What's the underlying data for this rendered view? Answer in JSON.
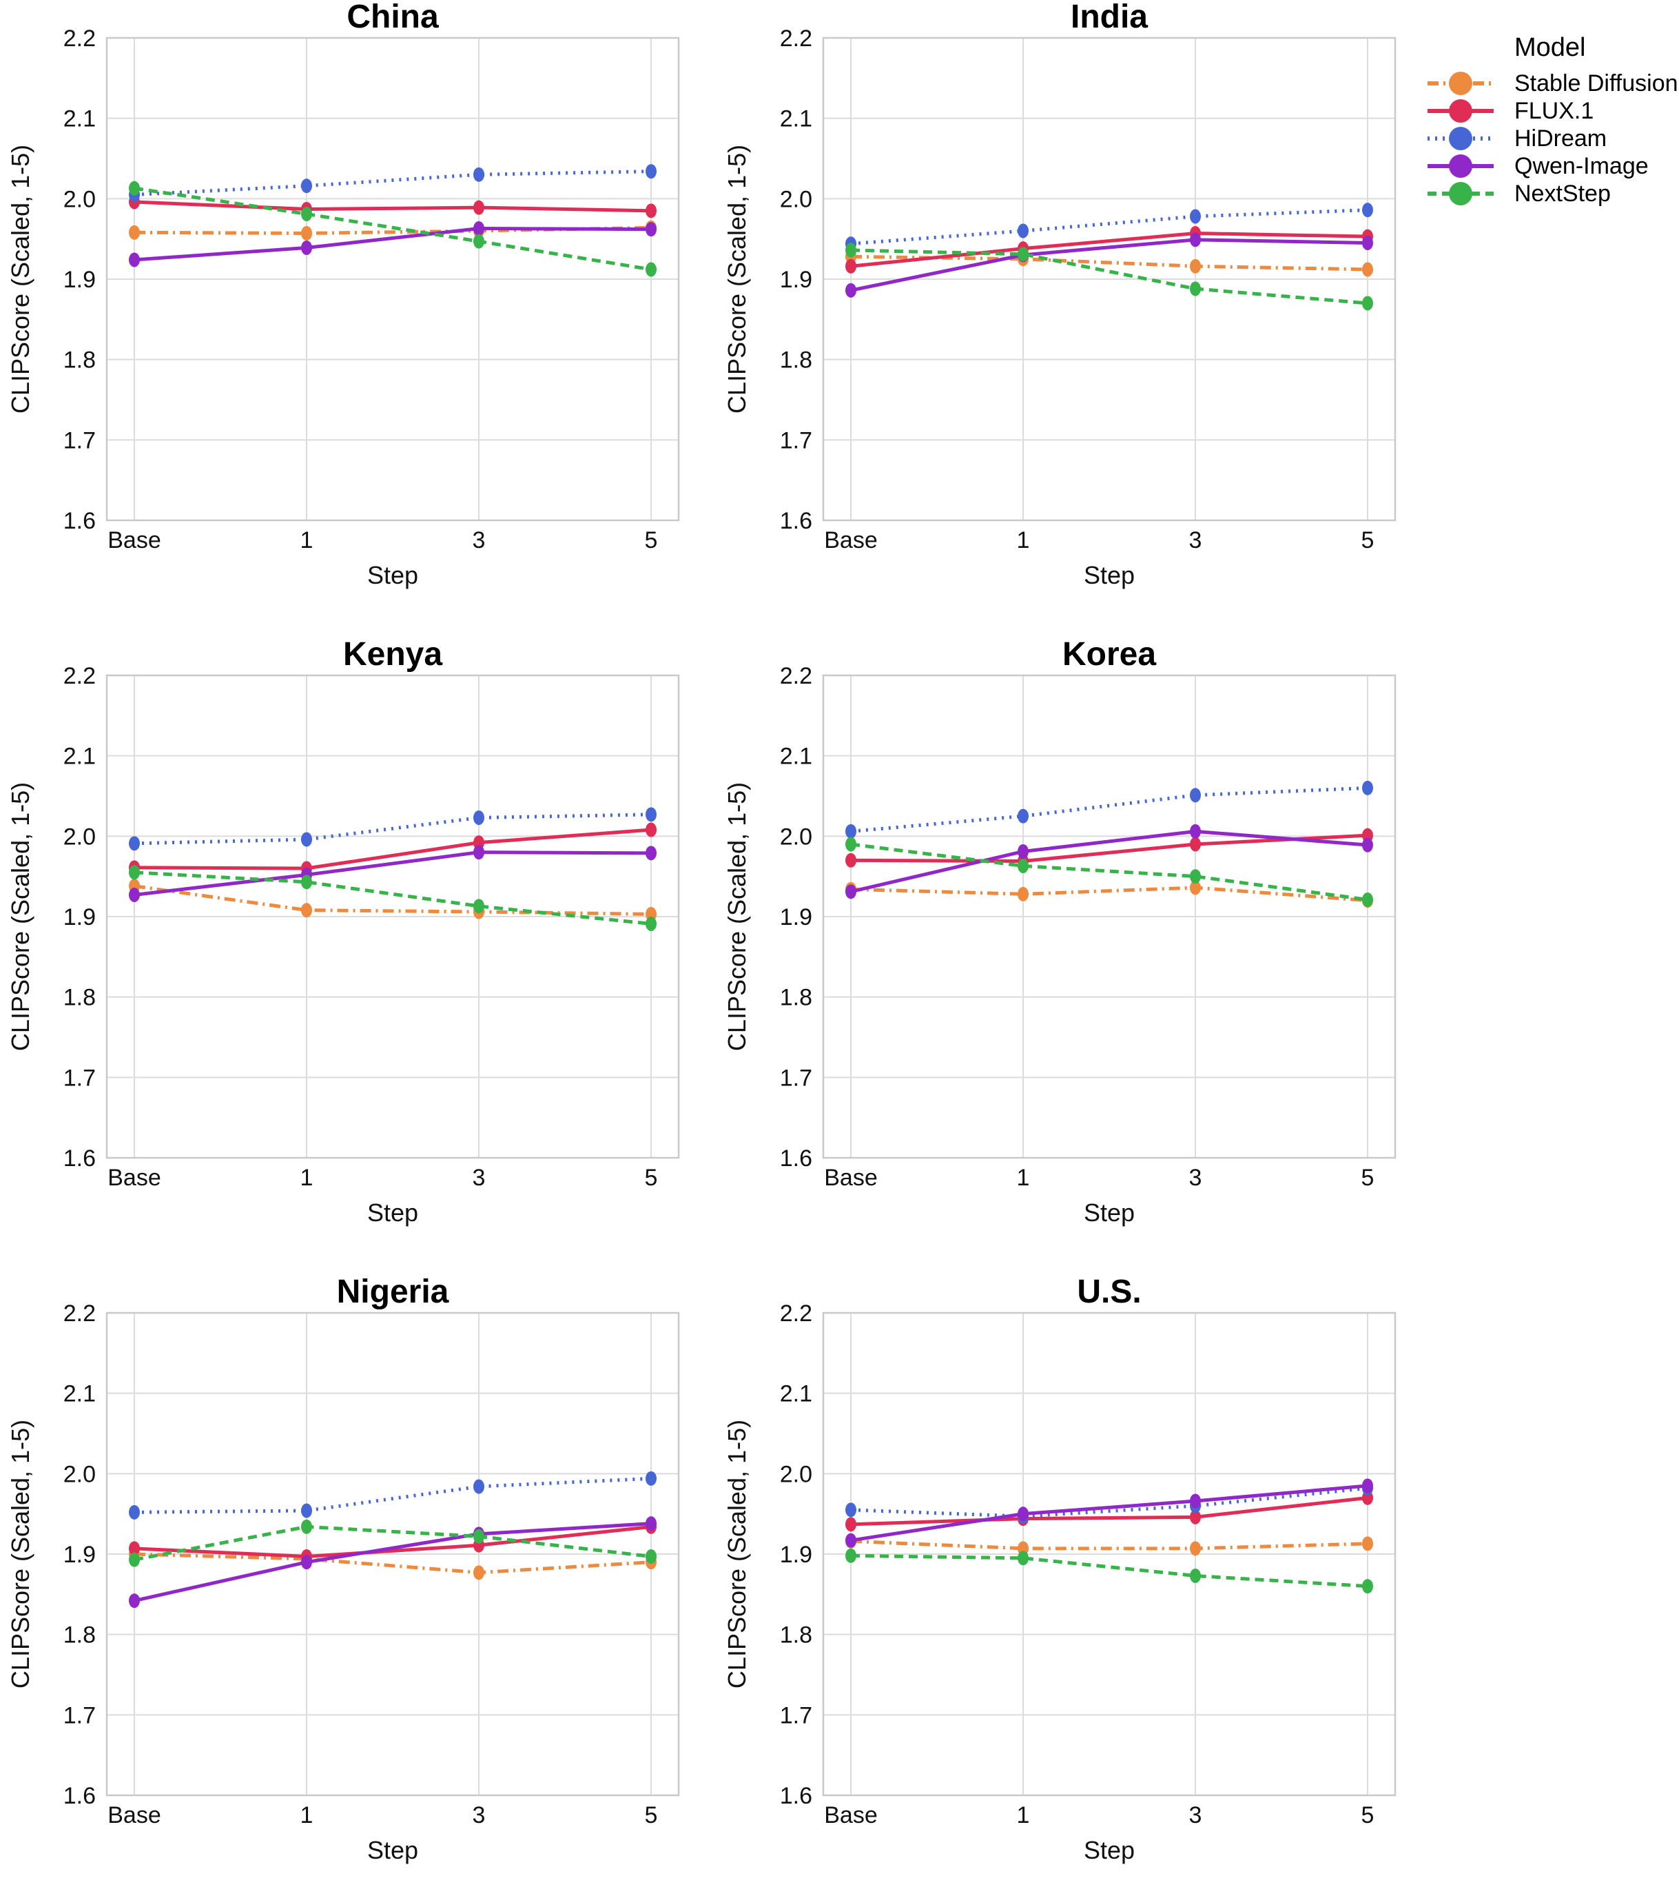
{
  "legend": {
    "title": "Model",
    "entries": [
      {
        "name": "Stable Diffusion",
        "color": "#ED8A3D",
        "dash": "16 7 3 7"
      },
      {
        "name": "FLUX.1",
        "color": "#E02D55",
        "dash": ""
      },
      {
        "name": "HiDream",
        "color": "#4666D6",
        "dash": "3 8"
      },
      {
        "name": "Qwen-Image",
        "color": "#9027C8",
        "dash": ""
      },
      {
        "name": "NextStep",
        "color": "#37B34A",
        "dash": "13 8"
      }
    ]
  },
  "axes": {
    "xlabel": "Step",
    "ylabel": "CLIPScore (Scaled, 1-5)",
    "categories": [
      "Base",
      "1",
      "3",
      "5"
    ],
    "yticks": [
      1.6,
      1.7,
      1.8,
      1.9,
      2.0,
      2.1,
      2.2
    ],
    "ylim": [
      1.6,
      2.2
    ],
    "grid": true,
    "legend_position": "top-right"
  },
  "chart_data": [
    {
      "type": "line",
      "title": "China",
      "categories": [
        "Base",
        "1",
        "3",
        "5"
      ],
      "xlabel": "Step",
      "ylabel": "CLIPScore (Scaled, 1-5)",
      "ylim": [
        1.6,
        2.2
      ],
      "series": [
        {
          "name": "Stable Diffusion",
          "values": [
            1.958,
            1.957,
            1.96,
            1.964
          ]
        },
        {
          "name": "FLUX.1",
          "values": [
            1.996,
            1.987,
            1.989,
            1.985
          ]
        },
        {
          "name": "HiDream",
          "values": [
            2.005,
            2.016,
            2.03,
            2.034
          ]
        },
        {
          "name": "Qwen-Image",
          "values": [
            1.924,
            1.939,
            1.963,
            1.962
          ]
        },
        {
          "name": "NextStep",
          "values": [
            2.013,
            1.981,
            1.947,
            1.912
          ]
        }
      ]
    },
    {
      "type": "line",
      "title": "India",
      "categories": [
        "Base",
        "1",
        "3",
        "5"
      ],
      "xlabel": "Step",
      "ylabel": "CLIPScore (Scaled, 1-5)",
      "ylim": [
        1.6,
        2.2
      ],
      "series": [
        {
          "name": "Stable Diffusion",
          "values": [
            1.928,
            1.925,
            1.916,
            1.912
          ]
        },
        {
          "name": "FLUX.1",
          "values": [
            1.916,
            1.938,
            1.957,
            1.953
          ]
        },
        {
          "name": "HiDream",
          "values": [
            1.944,
            1.96,
            1.978,
            1.986
          ]
        },
        {
          "name": "Qwen-Image",
          "values": [
            1.886,
            1.93,
            1.949,
            1.945
          ]
        },
        {
          "name": "NextStep",
          "values": [
            1.936,
            1.931,
            1.888,
            1.87
          ]
        }
      ]
    },
    {
      "type": "line",
      "title": "Kenya",
      "categories": [
        "Base",
        "1",
        "3",
        "5"
      ],
      "xlabel": "Step",
      "ylabel": "CLIPScore (Scaled, 1-5)",
      "ylim": [
        1.6,
        2.2
      ],
      "series": [
        {
          "name": "Stable Diffusion",
          "values": [
            1.938,
            1.908,
            1.906,
            1.903
          ]
        },
        {
          "name": "FLUX.1",
          "values": [
            1.961,
            1.96,
            1.992,
            2.008
          ]
        },
        {
          "name": "HiDream",
          "values": [
            1.991,
            1.996,
            2.023,
            2.027
          ]
        },
        {
          "name": "Qwen-Image",
          "values": [
            1.927,
            1.952,
            1.98,
            1.979
          ]
        },
        {
          "name": "NextStep",
          "values": [
            1.955,
            1.943,
            1.913,
            1.891
          ]
        }
      ]
    },
    {
      "type": "line",
      "title": "Korea",
      "categories": [
        "Base",
        "1",
        "3",
        "5"
      ],
      "xlabel": "Step",
      "ylabel": "CLIPScore (Scaled, 1-5)",
      "ylim": [
        1.6,
        2.2
      ],
      "series": [
        {
          "name": "Stable Diffusion",
          "values": [
            1.934,
            1.928,
            1.936,
            1.92
          ]
        },
        {
          "name": "FLUX.1",
          "values": [
            1.97,
            1.969,
            1.99,
            2.001
          ]
        },
        {
          "name": "HiDream",
          "values": [
            2.006,
            2.025,
            2.051,
            2.06
          ]
        },
        {
          "name": "Qwen-Image",
          "values": [
            1.931,
            1.981,
            2.006,
            1.989
          ]
        },
        {
          "name": "NextStep",
          "values": [
            1.99,
            1.963,
            1.95,
            1.921
          ]
        }
      ]
    },
    {
      "type": "line",
      "title": "Nigeria",
      "categories": [
        "Base",
        "1",
        "3",
        "5"
      ],
      "xlabel": "Step",
      "ylabel": "CLIPScore (Scaled, 1-5)",
      "ylim": [
        1.6,
        2.2
      ],
      "series": [
        {
          "name": "Stable Diffusion",
          "values": [
            1.9,
            1.894,
            1.877,
            1.89
          ]
        },
        {
          "name": "FLUX.1",
          "values": [
            1.907,
            1.897,
            1.911,
            1.934
          ]
        },
        {
          "name": "HiDream",
          "values": [
            1.952,
            1.954,
            1.984,
            1.994
          ]
        },
        {
          "name": "Qwen-Image",
          "values": [
            1.842,
            1.89,
            1.925,
            1.938
          ]
        },
        {
          "name": "NextStep",
          "values": [
            1.893,
            1.934,
            1.922,
            1.897
          ]
        }
      ]
    },
    {
      "type": "line",
      "title": "U.S.",
      "categories": [
        "Base",
        "1",
        "3",
        "5"
      ],
      "xlabel": "Step",
      "ylabel": "CLIPScore (Scaled, 1-5)",
      "ylim": [
        1.6,
        2.2
      ],
      "series": [
        {
          "name": "Stable Diffusion",
          "values": [
            1.916,
            1.907,
            1.907,
            1.913
          ]
        },
        {
          "name": "FLUX.1",
          "values": [
            1.937,
            1.944,
            1.946,
            1.97
          ]
        },
        {
          "name": "HiDream",
          "values": [
            1.955,
            1.947,
            1.96,
            1.982
          ]
        },
        {
          "name": "Qwen-Image",
          "values": [
            1.917,
            1.95,
            1.966,
            1.985
          ]
        },
        {
          "name": "NextStep",
          "values": [
            1.898,
            1.895,
            1.873,
            1.86
          ]
        }
      ]
    }
  ],
  "style": {
    "grid_color": "#dcdcdc",
    "spine_color": "#c9c9c9",
    "text_color": "#111111",
    "background": "#ffffff"
  }
}
